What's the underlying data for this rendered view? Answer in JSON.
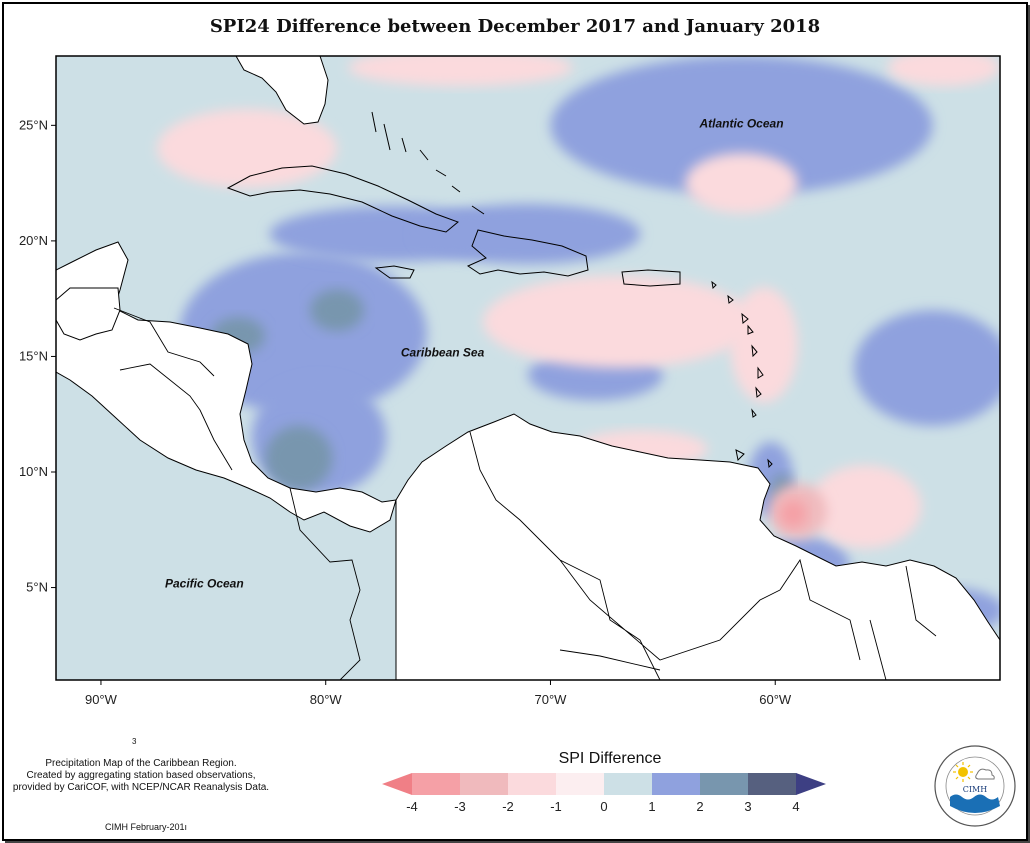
{
  "title": "SPI24 Difference between December 2017 and January 2018",
  "map": {
    "lon_range": [
      -92,
      -50
    ],
    "lat_range": [
      1,
      28
    ],
    "lat_ticks": [
      {
        "value": 25,
        "label": "25°N"
      },
      {
        "value": 20,
        "label": "20°N"
      },
      {
        "value": 15,
        "label": "15°N"
      },
      {
        "value": 10,
        "label": "10°N"
      },
      {
        "value": 5,
        "label": "5°N"
      }
    ],
    "lon_ticks": [
      {
        "value": -90,
        "label": "90°W"
      },
      {
        "value": -80,
        "label": "80°W"
      },
      {
        "value": -70,
        "label": "70°W"
      },
      {
        "value": -60,
        "label": "60°W"
      }
    ],
    "region_labels": [
      {
        "name": "atlantic",
        "text": "Atlantic Ocean",
        "lon": -61.5,
        "lat": 24.9
      },
      {
        "name": "caribbean",
        "text": "Caribbean Sea",
        "lon": -74.8,
        "lat": 15.0
      },
      {
        "name": "pacific",
        "text": "Pacific Ocean",
        "lon": -85.4,
        "lat": 5.0
      }
    ],
    "ocean_background_class": "0 to 1",
    "anomaly_cells": [
      {
        "lon": -81.0,
        "lat": 16.0,
        "rlon": 5.5,
        "rlat": 3.5,
        "class": 1
      },
      {
        "lon": -80.3,
        "lat": 11.5,
        "rlon": 3.0,
        "rlat": 2.5,
        "class": 1
      },
      {
        "lon": -77.0,
        "lat": 20.3,
        "rlon": 5.5,
        "rlat": 1.2,
        "class": 1
      },
      {
        "lon": -71.0,
        "lat": 20.3,
        "rlon": 5.0,
        "rlat": 1.3,
        "class": 1
      },
      {
        "lon": -68.0,
        "lat": 14.2,
        "rlon": 3.0,
        "rlat": 1.1,
        "class": 1
      },
      {
        "lon": -61.5,
        "lat": 25.0,
        "rlon": 8.5,
        "rlat": 3.0,
        "class": 1
      },
      {
        "lon": -53.0,
        "lat": 14.5,
        "rlon": 3.5,
        "rlat": 2.5,
        "class": 1
      },
      {
        "lon": -60.2,
        "lat": 9.7,
        "rlon": 1.0,
        "rlat": 1.6,
        "class": 1
      },
      {
        "lon": -58.7,
        "lat": 6.0,
        "rlon": 2.0,
        "rlat": 1.2,
        "class": 1
      },
      {
        "lon": -52.3,
        "lat": 4.0,
        "rlon": 2.5,
        "rlat": 1.0,
        "class": 1
      },
      {
        "lon": -56.0,
        "lat": 8.5,
        "rlon": 0.6,
        "rlat": 0.8,
        "class": 1
      },
      {
        "lon": -81.2,
        "lat": 10.6,
        "rlon": 1.5,
        "rlat": 1.4,
        "class": 2
      },
      {
        "lon": -79.5,
        "lat": 17.0,
        "rlon": 1.2,
        "rlat": 0.9,
        "class": 2
      },
      {
        "lon": -83.9,
        "lat": 15.9,
        "rlon": 1.2,
        "rlat": 0.8,
        "class": 2
      },
      {
        "lon": -59.1,
        "lat": 5.8,
        "rlon": 0.6,
        "rlat": 0.4,
        "class": 2
      },
      {
        "lon": -59.7,
        "lat": 9.2,
        "rlon": 0.5,
        "rlat": 0.7,
        "class": 2
      },
      {
        "lon": -83.5,
        "lat": 24.0,
        "rlon": 4.0,
        "rlat": 1.7,
        "class": -1
      },
      {
        "lon": -74.0,
        "lat": 27.5,
        "rlon": 5.0,
        "rlat": 0.8,
        "class": -1
      },
      {
        "lon": -61.5,
        "lat": 22.5,
        "rlon": 2.5,
        "rlat": 1.3,
        "class": -1
      },
      {
        "lon": -67.0,
        "lat": 16.5,
        "rlon": 6.0,
        "rlat": 2.0,
        "class": -1
      },
      {
        "lon": -60.5,
        "lat": 15.5,
        "rlon": 1.5,
        "rlat": 2.5,
        "class": -1
      },
      {
        "lon": -66.0,
        "lat": 11.0,
        "rlon": 3.0,
        "rlat": 0.8,
        "class": -1
      },
      {
        "lon": -56.0,
        "lat": 8.5,
        "rlon": 2.5,
        "rlat": 1.8,
        "class": -1
      },
      {
        "lon": -52.5,
        "lat": 27.5,
        "rlon": 2.5,
        "rlat": 0.8,
        "class": -1
      },
      {
        "lon": -58.8,
        "lat": 3.5,
        "rlon": 1.2,
        "rlat": 0.8,
        "class": -1
      },
      {
        "lon": -59.0,
        "lat": 8.3,
        "rlon": 1.3,
        "rlat": 1.2,
        "class": -2
      },
      {
        "lon": -59.2,
        "lat": 8.2,
        "rlon": 0.6,
        "rlat": 0.6,
        "class": -3
      }
    ]
  },
  "legend": {
    "title": "SPI Difference",
    "bins": [
      {
        "from": -4,
        "to": -3,
        "color": "#f5a0a6"
      },
      {
        "from": -3,
        "to": -2,
        "color": "#f0babd"
      },
      {
        "from": -2,
        "to": -1,
        "color": "#fbdadd"
      },
      {
        "from": -1,
        "to": 0,
        "color": "#fceef0"
      },
      {
        "from": 0,
        "to": 1,
        "color": "#cde0e6"
      },
      {
        "from": 1,
        "to": 2,
        "color": "#8fa1de"
      },
      {
        "from": 2,
        "to": 3,
        "color": "#7896ae"
      },
      {
        "from": 3,
        "to": 4,
        "color": "#56607f"
      }
    ],
    "under_color": "#f07f86",
    "over_color": "#3d3f83",
    "tick_labels": [
      "-4",
      "-3",
      "-2",
      "-1",
      "0",
      "1",
      "2",
      "3",
      "4"
    ]
  },
  "credits": {
    "line1": "Precipitation Map of the Caribbean Region.",
    "line2": "Created by aggregating station based observations,",
    "line3": "provided by CariCOF, with NCEP/NCAR Reanalysis Data.",
    "footnote": "CIMH February-201ı",
    "stray_mark": "3"
  },
  "logo": {
    "text": "CIMH",
    "ring_text_top": "Caribbean Institute for",
    "ring_text_bottom": "Meteorology and Hydrology",
    "sun_color": "#f2c200",
    "wave_color": "#1a6fb5"
  }
}
